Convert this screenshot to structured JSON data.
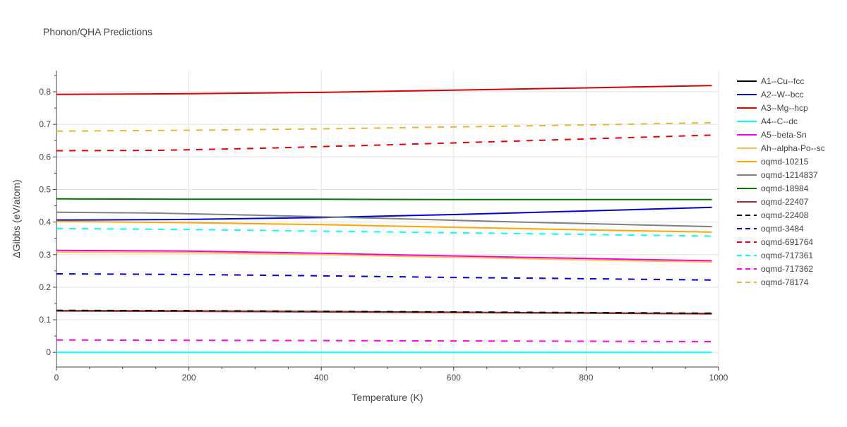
{
  "chart_data": {
    "type": "line",
    "title": "Phonon/QHA Predictions",
    "xlabel": "Temperature (K)",
    "ylabel": "ΔGibbs (eV/atom)",
    "xlim": [
      0,
      1000
    ],
    "ylim": [
      -0.045,
      0.865
    ],
    "x_ticks": [
      0,
      200,
      400,
      600,
      800,
      1000
    ],
    "y_ticks": [
      0,
      0.1,
      0.2,
      0.3,
      0.4,
      0.5,
      0.6,
      0.7,
      0.8
    ],
    "grid": true,
    "legend_position": "right",
    "series": [
      {
        "name": "A1--Cu--fcc",
        "color": "#000000",
        "dash": "solid",
        "x": [
          0,
          200,
          400,
          600,
          800,
          990
        ],
        "y": [
          0.128,
          0.127,
          0.125,
          0.123,
          0.121,
          0.119
        ]
      },
      {
        "name": "A2--W--bcc",
        "color": "#0000dd",
        "dash": "solid",
        "x": [
          0,
          200,
          400,
          600,
          800,
          990
        ],
        "y": [
          0.406,
          0.408,
          0.414,
          0.423,
          0.434,
          0.445
        ]
      },
      {
        "name": "A3--Mg--hcp",
        "color": "#dd0000",
        "dash": "solid",
        "x": [
          0,
          200,
          400,
          600,
          800,
          990
        ],
        "y": [
          0.792,
          0.794,
          0.798,
          0.805,
          0.812,
          0.819
        ]
      },
      {
        "name": "A4--C--dc",
        "color": "#00ffff",
        "dash": "solid",
        "x": [
          0,
          200,
          400,
          600,
          800,
          990
        ],
        "y": [
          0.0,
          0.0,
          0.0,
          0.0,
          0.0,
          0.0
        ]
      },
      {
        "name": "A5--beta-Sn",
        "color": "#ee00ee",
        "dash": "solid",
        "x": [
          0,
          200,
          400,
          600,
          800,
          990
        ],
        "y": [
          0.313,
          0.311,
          0.304,
          0.296,
          0.288,
          0.281
        ]
      },
      {
        "name": "Ah--alpha-Po--sc",
        "color": "#ffbb44",
        "dash": "solid",
        "x": [
          0,
          200,
          400,
          600,
          800,
          990
        ],
        "y": [
          0.308,
          0.306,
          0.3,
          0.292,
          0.284,
          0.277
        ]
      },
      {
        "name": "oqmd-10215",
        "color": "#ffa500",
        "dash": "solid",
        "x": [
          0,
          200,
          400,
          600,
          800,
          990
        ],
        "y": [
          0.402,
          0.398,
          0.392,
          0.384,
          0.376,
          0.369
        ]
      },
      {
        "name": "oqmd-1214837",
        "color": "#808080",
        "dash": "solid",
        "x": [
          0,
          140,
          300,
          500,
          700,
          990
        ],
        "y": [
          0.43,
          0.428,
          0.421,
          0.411,
          0.4,
          0.386
        ]
      },
      {
        "name": "oqmd-18984",
        "color": "#007700",
        "dash": "solid",
        "x": [
          0,
          200,
          400,
          600,
          800,
          990
        ],
        "y": [
          0.471,
          0.47,
          0.47,
          0.469,
          0.469,
          0.469
        ]
      },
      {
        "name": "oqmd-22407",
        "color": "#a52a2a",
        "dash": "solid",
        "x": [
          0,
          200,
          400,
          600,
          800,
          990
        ],
        "y": [
          0.127,
          0.126,
          0.124,
          0.122,
          0.12,
          0.118
        ]
      },
      {
        "name": "oqmd-22408",
        "color": "#000000",
        "dash": "dash",
        "x": [
          0,
          200,
          400,
          600,
          800,
          990
        ],
        "y": [
          0.129,
          0.128,
          0.126,
          0.124,
          0.122,
          0.12
        ]
      },
      {
        "name": "oqmd-3484",
        "color": "#0000dd",
        "dash": "dash",
        "x": [
          0,
          200,
          400,
          600,
          800,
          990
        ],
        "y": [
          0.241,
          0.239,
          0.235,
          0.23,
          0.226,
          0.222
        ]
      },
      {
        "name": "oqmd-691764",
        "color": "#ee0000",
        "dash": "dash",
        "x": [
          0,
          150,
          300,
          500,
          700,
          990
        ],
        "y": [
          0.619,
          0.62,
          0.626,
          0.637,
          0.649,
          0.667
        ]
      },
      {
        "name": "oqmd-717361",
        "color": "#00ffff",
        "dash": "dash",
        "x": [
          0,
          200,
          400,
          600,
          800,
          990
        ],
        "y": [
          0.38,
          0.377,
          0.372,
          0.367,
          0.362,
          0.357
        ]
      },
      {
        "name": "oqmd-717362",
        "color": "#ff00ff",
        "dash": "dash",
        "x": [
          0,
          200,
          400,
          600,
          800,
          990
        ],
        "y": [
          0.038,
          0.037,
          0.036,
          0.035,
          0.034,
          0.033
        ]
      },
      {
        "name": "oqmd-78174",
        "color": "#e6b830",
        "dash": "dash",
        "x": [
          0,
          200,
          400,
          600,
          800,
          990
        ],
        "y": [
          0.679,
          0.682,
          0.686,
          0.692,
          0.698,
          0.705
        ]
      }
    ]
  }
}
